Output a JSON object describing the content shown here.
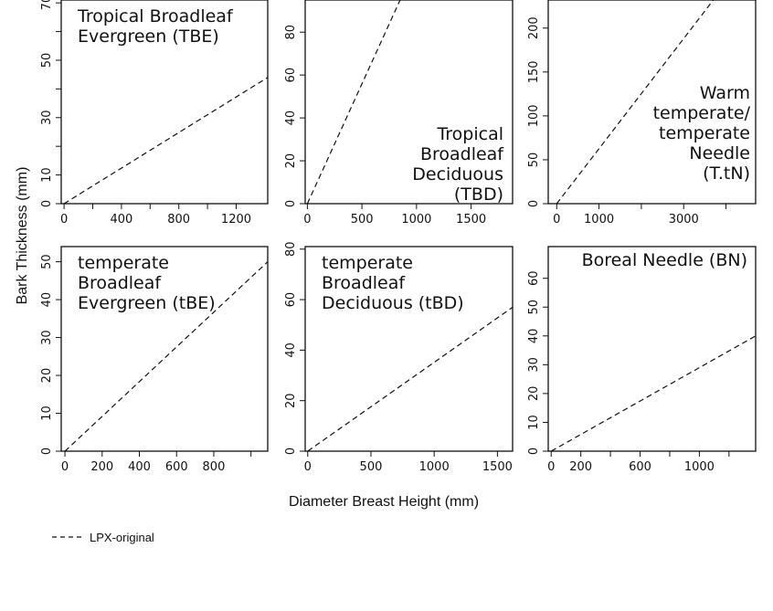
{
  "figure": {
    "ylabel": "Bark Thickness (mm)",
    "xlabel": "Diameter Breast Height (mm)",
    "legend": {
      "label": "LPX-original",
      "line_style": "dashed"
    }
  },
  "chart_data": [
    {
      "type": "line",
      "title_lines": [
        "Tropical Broadleaf",
        "Evergreen (TBE)"
      ],
      "title_position": "top-left",
      "xlim": [
        -20,
        1420
      ],
      "ylim": [
        0,
        71
      ],
      "xticks": [
        0,
        400,
        800,
        1200
      ],
      "xtick_minor": [
        200,
        600,
        1000
      ],
      "yticks": [
        0,
        10,
        30,
        50,
        70
      ],
      "ytick_minor": [
        20,
        40,
        60
      ],
      "series": [
        {
          "x": [
            0,
            1420
          ],
          "y": [
            0,
            44
          ],
          "style": "dashed"
        }
      ]
    },
    {
      "type": "line",
      "title_lines": [
        "Tropical",
        "Broadleaf",
        "Deciduous",
        "(TBD)"
      ],
      "title_position": "bottom-right",
      "xlim": [
        -20,
        1880
      ],
      "ylim": [
        0,
        95
      ],
      "xticks": [
        0,
        500,
        1000,
        1500
      ],
      "xtick_minor": [],
      "yticks": [
        0,
        20,
        40,
        60,
        80
      ],
      "ytick_minor": [],
      "series": [
        {
          "x": [
            0,
            850
          ],
          "y": [
            0,
            95
          ],
          "style": "dashed"
        }
      ]
    },
    {
      "type": "line",
      "title_lines": [
        "Warm",
        "temperate/",
        "temperate",
        "Needle",
        "(T.tN)"
      ],
      "title_position": "right",
      "xlim": [
        -200,
        4700
      ],
      "ylim": [
        0,
        232
      ],
      "xticks": [
        0,
        1000,
        3000
      ],
      "xtick_minor": [
        2000,
        4000
      ],
      "yticks": [
        0,
        50,
        100,
        150,
        200
      ],
      "ytick_minor": [],
      "series": [
        {
          "x": [
            0,
            3700
          ],
          "y": [
            0,
            232
          ],
          "style": "dashed"
        }
      ]
    },
    {
      "type": "line",
      "title_lines": [
        "temperate",
        "Broadleaf",
        "Evergreen (tBE)"
      ],
      "title_position": "top-left",
      "xlim": [
        -20,
        1090
      ],
      "ylim": [
        0,
        54
      ],
      "xticks": [
        0,
        200,
        400,
        600,
        800
      ],
      "xtick_minor": [
        1000
      ],
      "yticks": [
        0,
        10,
        20,
        30,
        40,
        50
      ],
      "ytick_minor": [],
      "series": [
        {
          "x": [
            0,
            1090
          ],
          "y": [
            0,
            50
          ],
          "style": "dashed"
        }
      ]
    },
    {
      "type": "line",
      "title_lines": [
        "temperate",
        "Broadleaf",
        "Deciduous (tBD)"
      ],
      "title_position": "top-left",
      "xlim": [
        -20,
        1620
      ],
      "ylim": [
        0,
        81
      ],
      "xticks": [
        0,
        500,
        1000,
        1500
      ],
      "xtick_minor": [],
      "yticks": [
        0,
        20,
        40,
        60,
        80
      ],
      "ytick_minor": [],
      "series": [
        {
          "x": [
            0,
            1620
          ],
          "y": [
            0,
            57
          ],
          "style": "dashed"
        }
      ]
    },
    {
      "type": "line",
      "title_lines": [
        "Boreal Needle (BN)"
      ],
      "title_position": "top-right",
      "xlim": [
        -20,
        1380
      ],
      "ylim": [
        0,
        71
      ],
      "xticks": [
        0,
        200,
        600,
        1000
      ],
      "xtick_minor": [
        400,
        800,
        1200
      ],
      "yticks": [
        0,
        10,
        20,
        30,
        40,
        50,
        60
      ],
      "ytick_minor": [],
      "series": [
        {
          "x": [
            0,
            1380
          ],
          "y": [
            0,
            40
          ],
          "style": "dashed"
        }
      ]
    }
  ]
}
